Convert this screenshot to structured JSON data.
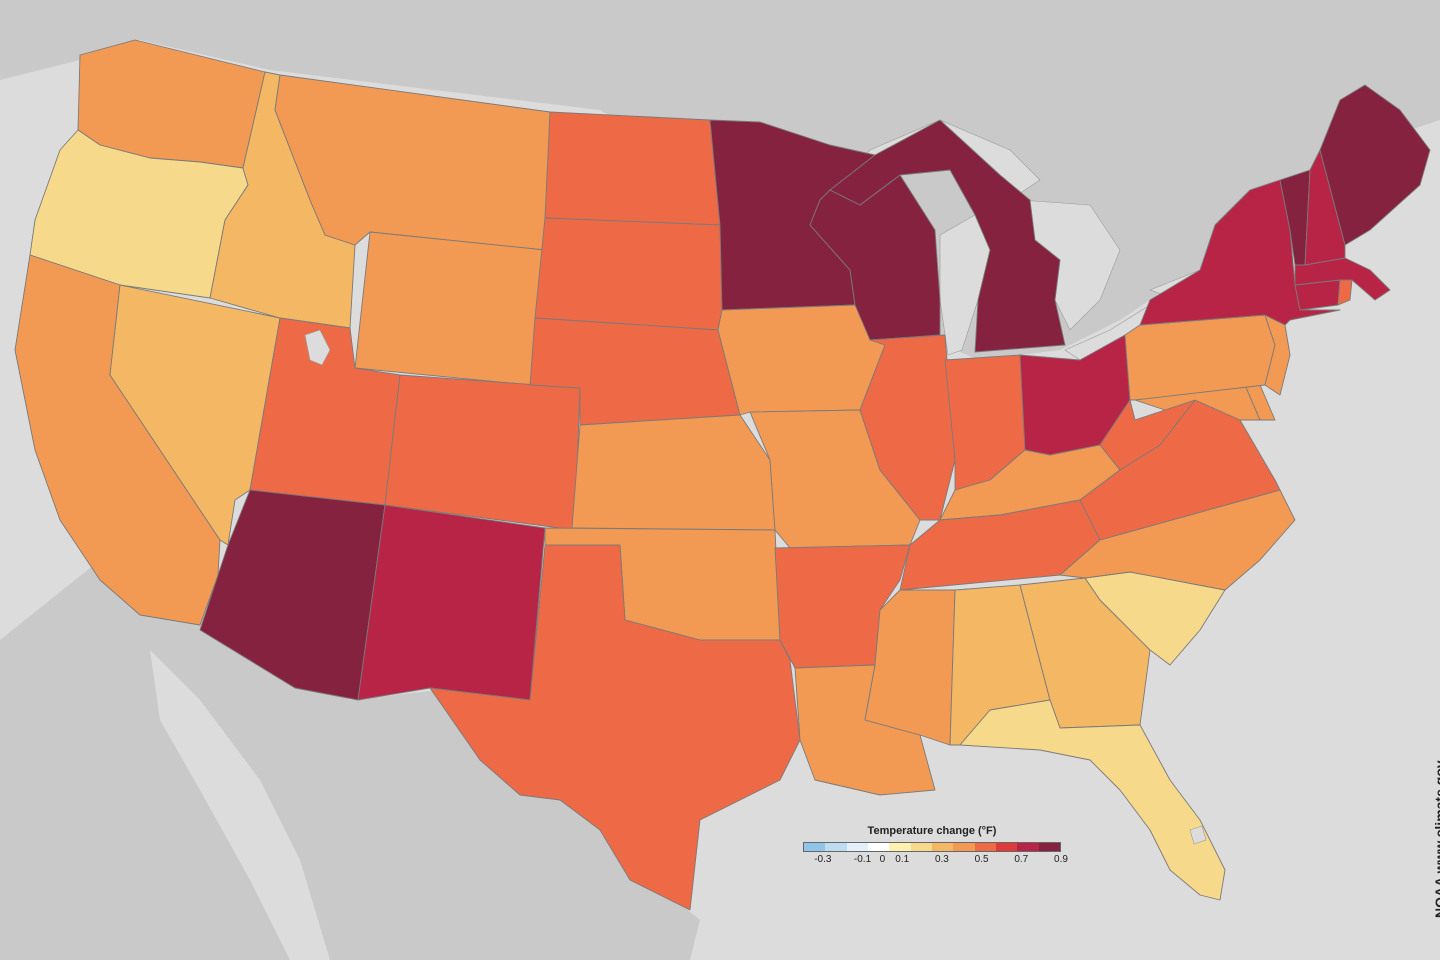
{
  "legend": {
    "title": "Temperature change (°F)",
    "colors": [
      "#8ec5e8",
      "#bcdcf2",
      "#e3eff9",
      "#ffffff",
      "#fff1b0",
      "#f6d98a",
      "#f4b763",
      "#f29a54",
      "#ee6a46",
      "#dd3b3b",
      "#b82445",
      "#852240"
    ],
    "ticks": [
      "-0.3",
      "-0.1",
      "0",
      "0.1",
      "0.3",
      "0.5",
      "0.7",
      "0.9"
    ]
  },
  "credit": "NOAA www.climate.gov",
  "map_data": {
    "variable": "Temperature change (°F)",
    "states": {
      "WA": 0.4,
      "OR": 0.15,
      "CA": 0.4,
      "ID": 0.3,
      "NV": 0.3,
      "MT": 0.4,
      "WY": 0.4,
      "UT": 0.5,
      "AZ": 0.8,
      "CO": 0.5,
      "NM": 0.7,
      "ND": 0.5,
      "SD": 0.5,
      "NE": 0.5,
      "KS": 0.4,
      "OK": 0.4,
      "TX": 0.5,
      "MN": 0.9,
      "IA": 0.4,
      "MO": 0.4,
      "AR": 0.5,
      "LA": 0.4,
      "WI": 0.9,
      "IL": 0.5,
      "MI": 0.8,
      "IN": 0.5,
      "OH": 0.7,
      "KY": 0.4,
      "TN": 0.5,
      "MS": 0.4,
      "AL": 0.3,
      "GA": 0.3,
      "FL": 0.15,
      "SC": 0.15,
      "NC": 0.4,
      "VA": 0.5,
      "WV": 0.5,
      "MD": 0.4,
      "DE": 0.4,
      "PA": 0.4,
      "NJ": 0.4,
      "NY": 0.7,
      "CT": 0.7,
      "RI": 0.5,
      "MA": 0.7,
      "VT": 0.9,
      "NH": 0.7,
      "ME": 0.8
    }
  }
}
